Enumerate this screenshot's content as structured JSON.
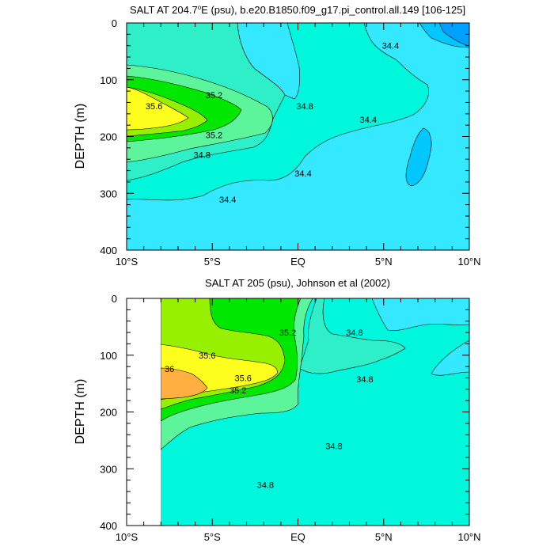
{
  "chart_data": [
    {
      "type": "contour",
      "title": "SALT AT 204.7°E (psu), b.e20.B1850.f09_g17.pi_control.all.149 [106-125]",
      "title_pre": "SALT AT 204.7",
      "title_sup": "o",
      "title_post": "E (psu), b.e20.B1850.f09_g17.pi_control.all.149 [106-125]",
      "ylabel": "DEPTH (m)",
      "x_ticks": [
        "10°S",
        "5°S",
        "EQ",
        "5°N",
        "10°N"
      ],
      "x_values": [
        -10,
        -5,
        0,
        5,
        10
      ],
      "y_ticks": [
        "0",
        "100",
        "200",
        "300",
        "400"
      ],
      "y_values": [
        0,
        100,
        200,
        300,
        400
      ],
      "xlim": [
        -10,
        10
      ],
      "ylim": [
        400,
        0
      ],
      "contour_levels": [
        34.2,
        34.4,
        34.6,
        34.8,
        35.0,
        35.2,
        35.4,
        35.6,
        35.8,
        36.0
      ],
      "contour_labels": [
        {
          "text": "35.2",
          "x": -4.9,
          "y": 127
        },
        {
          "text": "35.6",
          "x": -8.4,
          "y": 146
        },
        {
          "text": "35.2",
          "x": -4.9,
          "y": 197
        },
        {
          "text": "34.8",
          "x": -5.6,
          "y": 232
        },
        {
          "text": "34.8",
          "x": 0.4,
          "y": 146
        },
        {
          "text": "34.4",
          "x": 5.4,
          "y": 40
        },
        {
          "text": "34.4",
          "x": 4.1,
          "y": 170
        },
        {
          "text": "34.4",
          "x": 0.3,
          "y": 265
        },
        {
          "text": "34.4",
          "x": -4.1,
          "y": 311
        }
      ]
    },
    {
      "type": "contour",
      "title": "SALT AT 205 (psu), Johnson et al (2002)",
      "ylabel": "DEPTH (m)",
      "x_ticks": [
        "10°S",
        "5°S",
        "EQ",
        "5°N",
        "10°N"
      ],
      "x_values": [
        -10,
        -5,
        0,
        5,
        10
      ],
      "y_ticks": [
        "0",
        "100",
        "200",
        "300",
        "400"
      ],
      "y_values": [
        0,
        100,
        200,
        300,
        400
      ],
      "xlim": [
        -10,
        10
      ],
      "ylim": [
        400,
        0
      ],
      "data_x_range": [
        -8,
        10
      ],
      "contour_levels": [
        34.4,
        34.6,
        34.8,
        35.0,
        35.2,
        35.4,
        35.6,
        35.8,
        36.0,
        36.2
      ],
      "contour_labels": [
        {
          "text": "35.2",
          "x": -0.6,
          "y": 60
        },
        {
          "text": "34.8",
          "x": 3.3,
          "y": 60
        },
        {
          "text": "35.6",
          "x": -5.3,
          "y": 100
        },
        {
          "text": "36",
          "x": -7.5,
          "y": 124
        },
        {
          "text": "35.6",
          "x": -3.2,
          "y": 140
        },
        {
          "text": "34.8",
          "x": 3.9,
          "y": 142
        },
        {
          "text": "35.2",
          "x": -3.5,
          "y": 162
        },
        {
          "text": "34.8",
          "x": 2.1,
          "y": 260
        },
        {
          "text": "34.8",
          "x": -1.9,
          "y": 328
        }
      ]
    }
  ],
  "palette": {
    "p34_0": "#00a0ff",
    "p34_2": "#00c8ff",
    "p34_4": "#33e8ff",
    "p34_6": "#00f7dc",
    "p34_8": "#2fefc8",
    "p35_0": "#5df59b",
    "p35_2": "#00e800",
    "p35_4": "#96f000",
    "p35_6": "#ffff1e",
    "p35_8": "#ffd040",
    "p36_2": "#ffb040"
  }
}
